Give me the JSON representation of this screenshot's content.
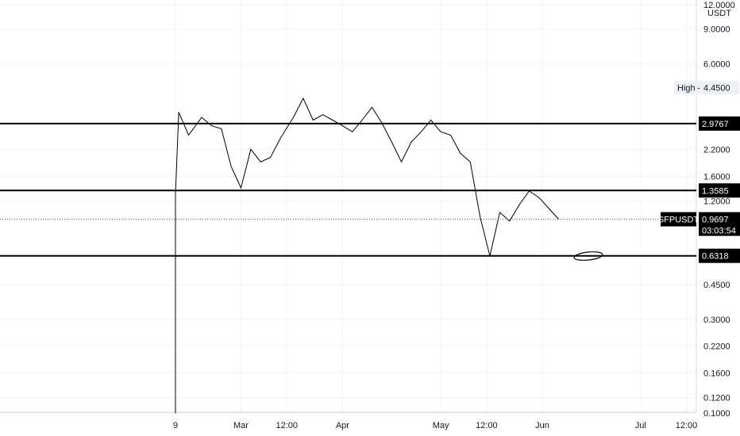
{
  "chart_data": {
    "type": "line",
    "symbol": "SFPUSDT",
    "currency": "USDT",
    "y_scale": "log",
    "ylim": [
      0.1,
      12.0
    ],
    "y_ticks": [
      "12.0000",
      "9.0000",
      "6.0000",
      "2.2000",
      "1.6000",
      "1.2000",
      "0.4500",
      "0.3000",
      "0.2200",
      "0.1600",
      "0.1200",
      "0.1000"
    ],
    "x_ticks": [
      "9",
      "Mar",
      "12:00",
      "Apr",
      "May",
      "12:00",
      "Jun",
      "Jul",
      "12:00"
    ],
    "high_label": "High",
    "high_value": "4.4500",
    "last_price": "0.9697",
    "countdown": "03:03:54",
    "horizontal_lines": [
      "2.9767",
      "1.3585",
      "0.6318"
    ],
    "series": [
      {
        "x": [
          "Feb 9",
          "Feb 10",
          "Feb 13",
          "Feb 17",
          "Feb 20",
          "Feb 23",
          "Feb 26",
          "Mar 1",
          "Mar 4",
          "Mar 7",
          "Mar 10",
          "Mar 13",
          "Mar 17",
          "Mar 20",
          "Mar 23",
          "Mar 26",
          "Mar 29",
          "Apr 1",
          "Apr 4",
          "Apr 7",
          "Apr 10",
          "Apr 13",
          "Apr 16",
          "Apr 19",
          "Apr 22",
          "Apr 25",
          "Apr 28",
          "May 1",
          "May 4",
          "May 7",
          "May 10",
          "May 13",
          "May 16",
          "May 19",
          "May 22",
          "May 25",
          "May 28",
          "May 31",
          "Jun 3",
          "Jun 6"
        ],
        "values": [
          1.3,
          3.4,
          2.6,
          3.2,
          2.9,
          2.8,
          1.8,
          1.4,
          2.2,
          1.9,
          2.0,
          2.5,
          3.2,
          4.0,
          3.1,
          3.3,
          3.1,
          2.9,
          2.7,
          3.1,
          3.6,
          3.0,
          2.4,
          1.9,
          2.4,
          2.7,
          3.1,
          2.7,
          2.6,
          2.1,
          1.9,
          1.0,
          0.63,
          1.05,
          0.95,
          1.15,
          1.35,
          1.25,
          1.1,
          0.97
        ]
      }
    ]
  }
}
